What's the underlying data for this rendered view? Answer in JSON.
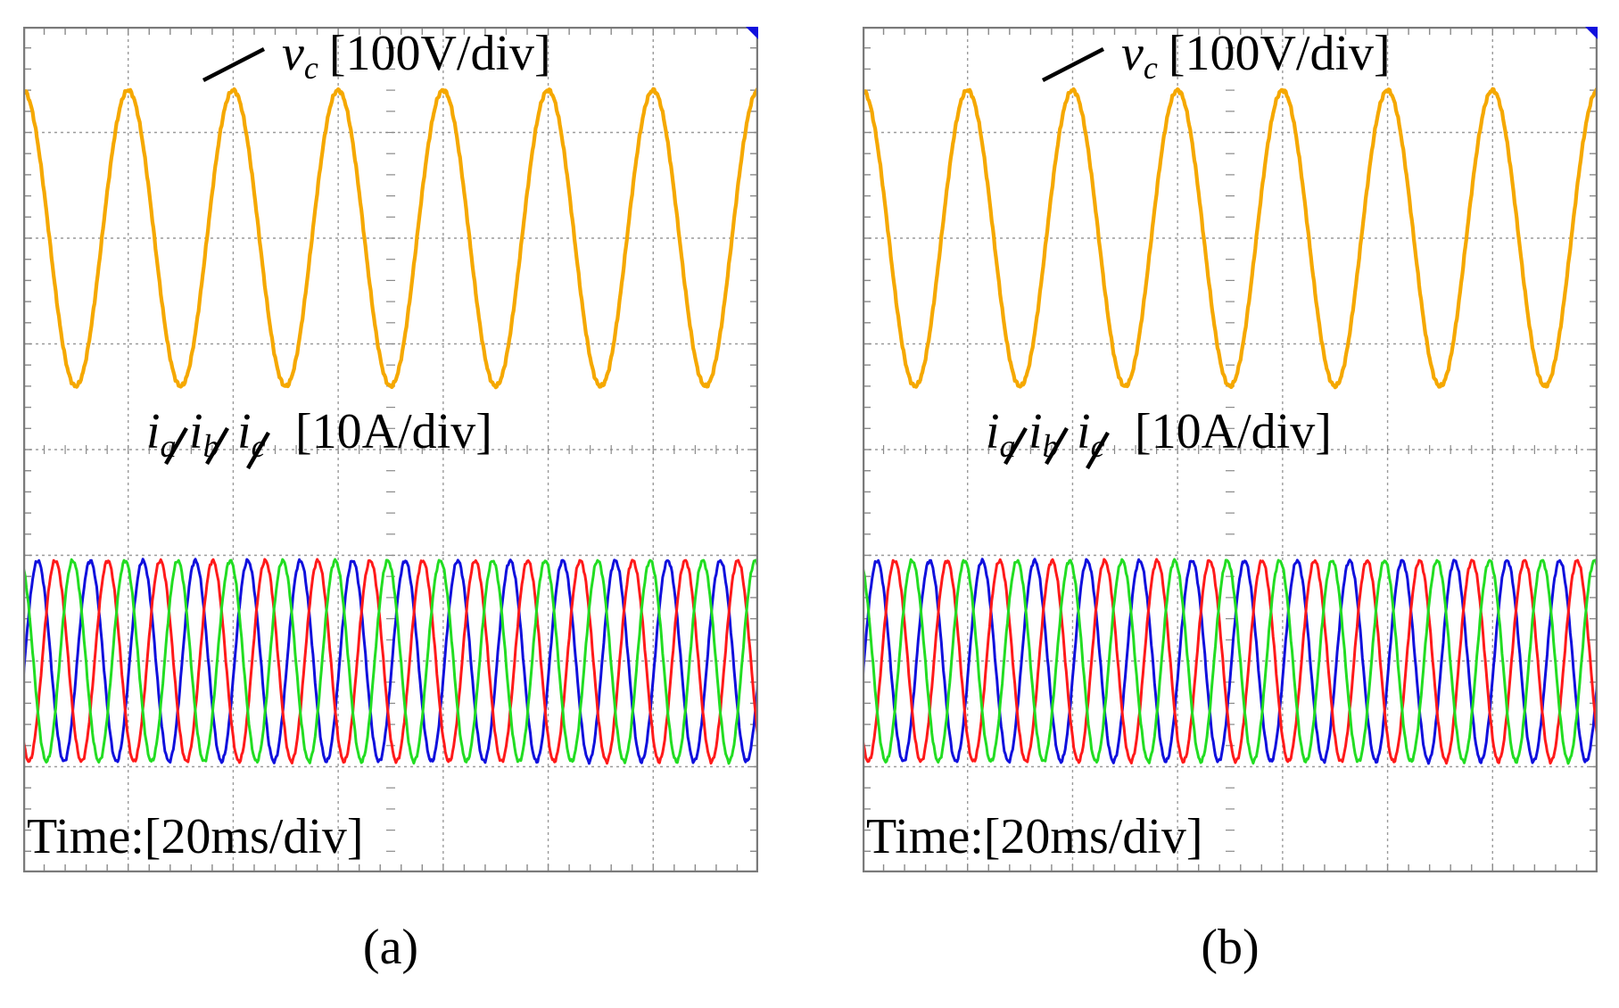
{
  "chart_data": [
    {
      "type": "line",
      "panel_label": "(a)",
      "time_label": "Time:[20ms/div]",
      "voltage_label": {
        "symbol": "v",
        "sub": "c",
        "scale": "[100V/div]"
      },
      "current_label": {
        "symbols": [
          {
            "symbol": "i",
            "sub": "a"
          },
          {
            "symbol": "i",
            "sub": "b"
          },
          {
            "symbol": "i",
            "sub": "c"
          }
        ],
        "scale": "[10A/div]"
      },
      "divisions": {
        "x": 7,
        "y": 8
      },
      "series": [
        {
          "name": "v_c",
          "color": "#f5a800",
          "center_div": 2,
          "amplitude_div": 1.4,
          "period_div": 1.0,
          "phase_deg": 90
        },
        {
          "name": "i_a",
          "color": "#1010dd",
          "center_div": 6,
          "amplitude_div": 0.95,
          "period_div": 0.5,
          "phase_deg": -10
        },
        {
          "name": "i_b",
          "color": "#ff1a1a",
          "center_div": 6,
          "amplitude_div": 0.95,
          "period_div": 0.5,
          "phase_deg": -130
        },
        {
          "name": "i_c",
          "color": "#22dd22",
          "center_div": 6,
          "amplitude_div": 0.95,
          "period_div": 0.5,
          "phase_deg": 110
        }
      ]
    },
    {
      "type": "line",
      "panel_label": "(b)",
      "time_label": "Time:[20ms/div]",
      "voltage_label": {
        "symbol": "v",
        "sub": "c",
        "scale": "[100V/div]"
      },
      "current_label": {
        "symbols": [
          {
            "symbol": "i",
            "sub": "a"
          },
          {
            "symbol": "i",
            "sub": "b"
          },
          {
            "symbol": "i",
            "sub": "c"
          }
        ],
        "scale": "[10A/div]"
      },
      "divisions": {
        "x": 7,
        "y": 8
      },
      "series": [
        {
          "name": "v_c",
          "color": "#f5a800",
          "center_div": 2,
          "amplitude_div": 1.4,
          "period_div": 1.0,
          "phase_deg": 90
        },
        {
          "name": "i_a",
          "color": "#1010dd",
          "center_div": 6,
          "amplitude_div": 0.95,
          "period_div": 0.5,
          "phase_deg": -10
        },
        {
          "name": "i_b",
          "color": "#ff1a1a",
          "center_div": 6,
          "amplitude_div": 0.95,
          "period_div": 0.5,
          "phase_deg": -130
        },
        {
          "name": "i_c",
          "color": "#22dd22",
          "center_div": 6,
          "amplitude_div": 0.95,
          "period_div": 0.5,
          "phase_deg": 110
        }
      ]
    }
  ]
}
